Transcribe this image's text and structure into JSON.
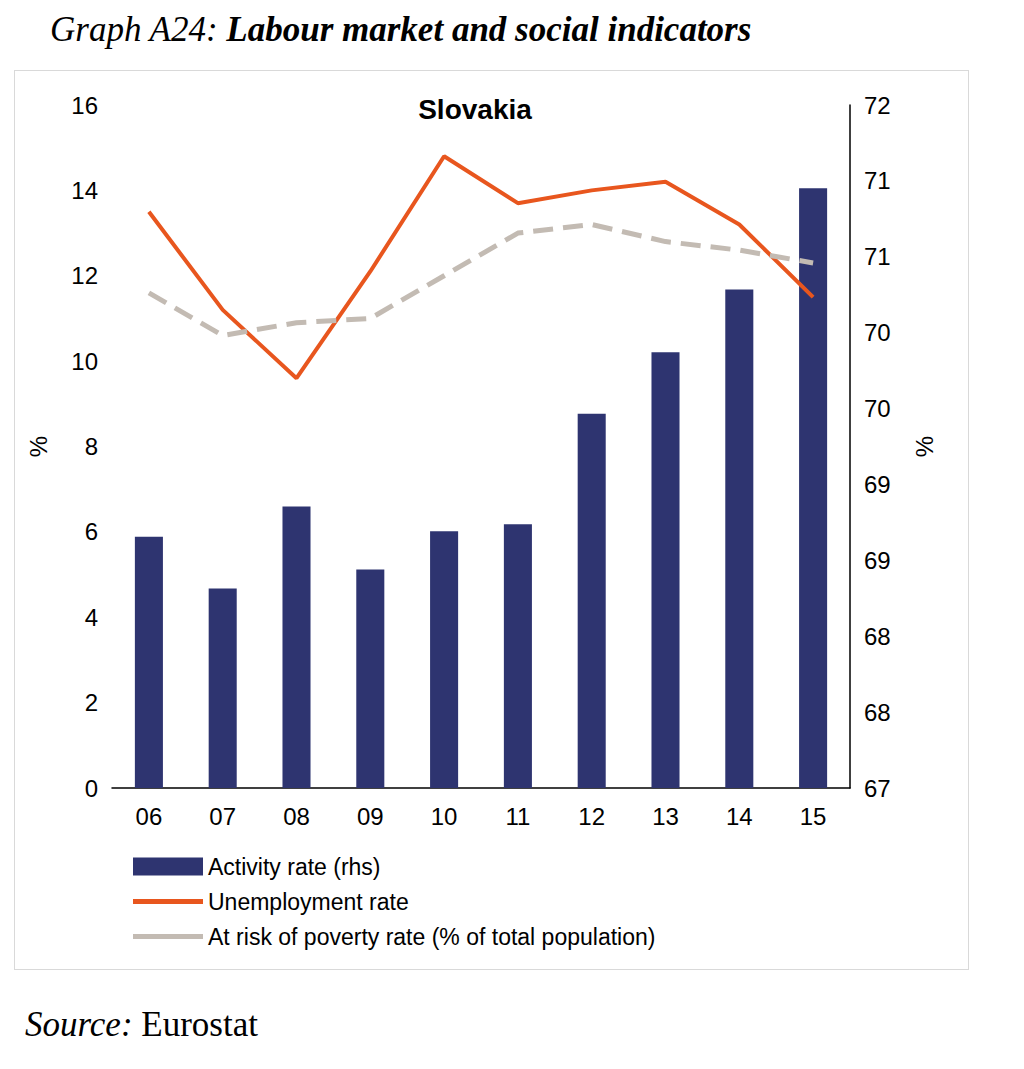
{
  "heading": "Graph A24: Labour market and social indicators",
  "source": "Source: Eurostat",
  "chart_data": {
    "type": "bar",
    "title": "Slovakia",
    "ylabel": "%",
    "y2label": "%",
    "categories": [
      "06",
      "07",
      "08",
      "09",
      "10",
      "11",
      "12",
      "13",
      "14",
      "15"
    ],
    "series": [
      {
        "name": "Activity rate (rhs)",
        "type": "bar",
        "axis": "y2",
        "color": "#2e3470",
        "values": [
          68.84,
          68.46,
          69.06,
          68.6,
          68.88,
          68.93,
          69.74,
          70.19,
          70.65,
          71.39
        ]
      },
      {
        "name": "Unemployment rate",
        "type": "line",
        "color": "#e8561e",
        "line_style": "solid",
        "marker": "none",
        "values": [
          13.5,
          11.2,
          9.6,
          12.1,
          14.8,
          13.7,
          14.0,
          14.2,
          13.2,
          11.5
        ]
      },
      {
        "name": "At risk of poverty rate (% of total population)",
        "type": "line",
        "color": "#c3bbb3",
        "line_style": "dashed",
        "marker": "none",
        "values": [
          11.6,
          10.6,
          10.9,
          11.0,
          12.0,
          13.0,
          13.2,
          12.8,
          12.6,
          12.3
        ]
      }
    ],
    "ylim": [
      0,
      16
    ],
    "yticks": [
      0,
      2,
      4,
      6,
      8,
      10,
      12,
      14,
      16
    ],
    "y2lim": [
      67,
      72
    ],
    "y2ticks": [
      67,
      {
        "value": 67.5556,
        "label": "68"
      },
      {
        "value": 68.1111,
        "label": "68"
      },
      {
        "value": 68.6667,
        "label": "69"
      },
      {
        "value": 69.2222,
        "label": "69"
      },
      {
        "value": 69.7778,
        "label": "70"
      },
      {
        "value": 70.3333,
        "label": "70"
      },
      {
        "value": 70.8889,
        "label": "71"
      },
      {
        "value": 71.4444,
        "label": "71"
      },
      72
    ],
    "grid": false,
    "legend": "bottom"
  }
}
